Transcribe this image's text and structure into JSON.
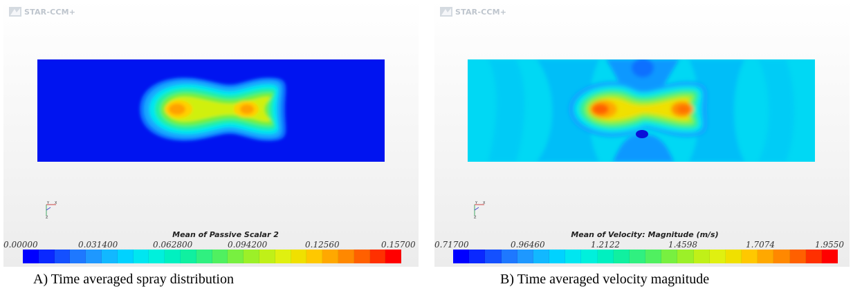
{
  "panels": [
    {
      "logo": "STAR-CCM+",
      "legend_title": "Mean of Passive Scalar 2",
      "ticks": [
        "0.00000",
        "0.031400",
        "0.062800",
        "0.094200",
        "0.12560",
        "0.15700"
      ],
      "caption": "A) Time averaged spray distribution"
    },
    {
      "logo": "STAR-CCM+",
      "legend_title": "Mean of Velocity: Magnitude (m/s)",
      "ticks": [
        "0.71700",
        "0.96460",
        "1.2122",
        "1.4598",
        "1.7074",
        "1.9550"
      ],
      "caption": "B) Time averaged velocity magnitude"
    }
  ],
  "colormap": [
    "#0000ff",
    "#0a28ff",
    "#1450ff",
    "#1e78ff",
    "#1e98ff",
    "#12b8ff",
    "#00d2ff",
    "#00e6f0",
    "#00f0dc",
    "#00f0c0",
    "#10f0a0",
    "#30f080",
    "#50f060",
    "#78f040",
    "#9cf028",
    "#c0f018",
    "#e0f010",
    "#f0e000",
    "#ffc800",
    "#ffa800",
    "#ff8800",
    "#ff6000",
    "#ff3000",
    "#ff0000"
  ],
  "icons": {
    "logo": "star-ccm-logo-icon",
    "axes": "axis-triad-icon"
  }
}
